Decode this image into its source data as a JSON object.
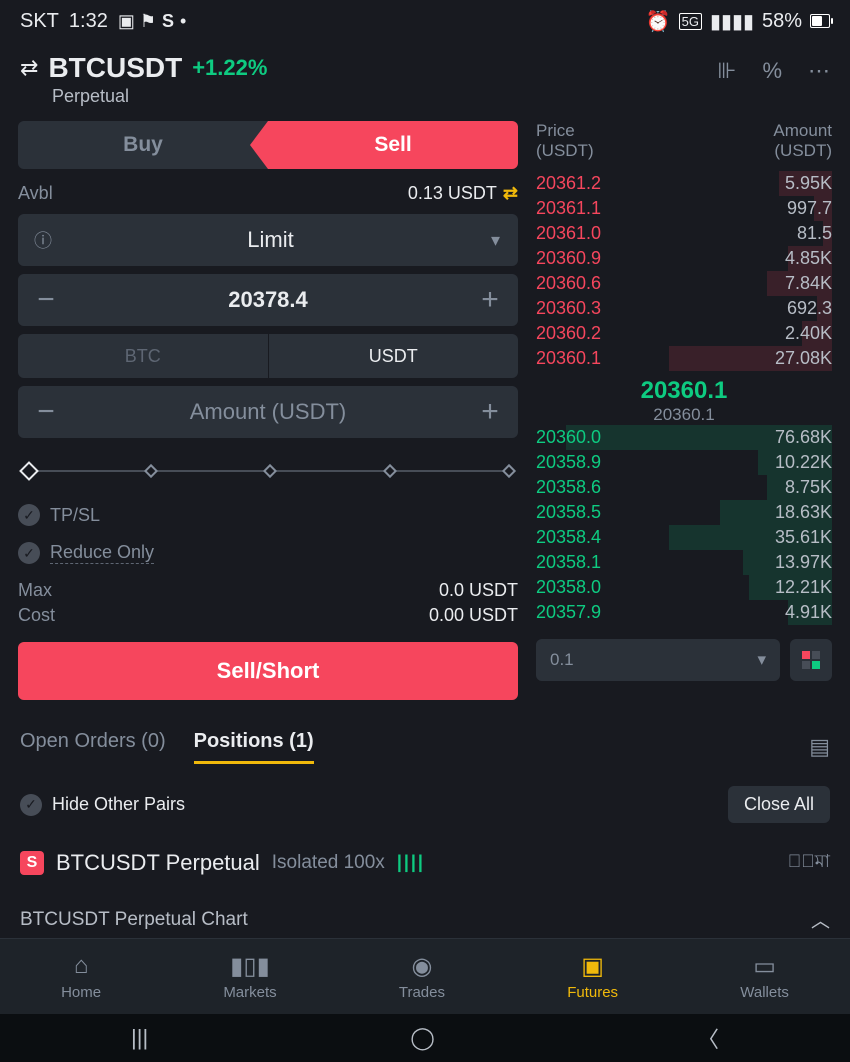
{
  "status": {
    "carrier": "SKT",
    "time": "1:32",
    "battery_pct": "58%"
  },
  "header": {
    "pair": "BTCUSDT",
    "change": "+1.22%",
    "change_color": "#0ecb81",
    "sub": "Perpetual"
  },
  "order_form": {
    "buy_label": "Buy",
    "sell_label": "Sell",
    "active_side": "sell",
    "avbl_label": "Avbl",
    "avbl_value": "0.13 USDT",
    "order_type": "Limit",
    "price": "20378.4",
    "denom_a": "BTC",
    "denom_b": "USDT",
    "amount_placeholder": "Amount (USDT)",
    "tpsl_label": "TP/SL",
    "reduce_label": "Reduce Only",
    "max_label": "Max",
    "max_value": "0.0 USDT",
    "cost_label": "Cost",
    "cost_value": "0.00 USDT",
    "action_label": "Sell/Short",
    "action_color": "#f6465d"
  },
  "orderbook": {
    "price_head": "Price",
    "price_unit": "(USDT)",
    "amount_head": "Amount",
    "amount_unit": "(USDT)",
    "ask_color": "#f6465d",
    "bid_color": "#0ecb81",
    "asks": [
      {
        "p": "20361.2",
        "a": "5.95K",
        "d": 18
      },
      {
        "p": "20361.1",
        "a": "997.7",
        "d": 6
      },
      {
        "p": "20361.0",
        "a": "81.5",
        "d": 3
      },
      {
        "p": "20360.9",
        "a": "4.85K",
        "d": 15
      },
      {
        "p": "20360.6",
        "a": "7.84K",
        "d": 22
      },
      {
        "p": "20360.3",
        "a": "692.3",
        "d": 5
      },
      {
        "p": "20360.2",
        "a": "2.40K",
        "d": 10
      },
      {
        "p": "20360.1",
        "a": "27.08K",
        "d": 55
      }
    ],
    "mid": "20360.1",
    "mid_color": "#0ecb81",
    "mid_sub": "20360.1",
    "bids": [
      {
        "p": "20360.0",
        "a": "76.68K",
        "d": 90
      },
      {
        "p": "20358.9",
        "a": "10.22K",
        "d": 25
      },
      {
        "p": "20358.6",
        "a": "8.75K",
        "d": 22
      },
      {
        "p": "20358.5",
        "a": "18.63K",
        "d": 38
      },
      {
        "p": "20358.4",
        "a": "35.61K",
        "d": 55
      },
      {
        "p": "20358.1",
        "a": "13.97K",
        "d": 30
      },
      {
        "p": "20358.0",
        "a": "12.21K",
        "d": 28
      },
      {
        "p": "20357.9",
        "a": "4.91K",
        "d": 15
      }
    ],
    "tick": "0.1"
  },
  "tabs": {
    "open_orders": "Open Orders (0)",
    "positions": "Positions (1)"
  },
  "hide_row": {
    "label": "Hide Other Pairs",
    "close_all": "Close All"
  },
  "position": {
    "badge": "S",
    "name": "BTCUSDT Perpetual",
    "leverage": "Isolated 100x"
  },
  "chart_row": {
    "label": "BTCUSDT Perpetual  Chart"
  },
  "nav": {
    "home": "Home",
    "markets": "Markets",
    "trades": "Trades",
    "futures": "Futures",
    "wallets": "Wallets"
  }
}
